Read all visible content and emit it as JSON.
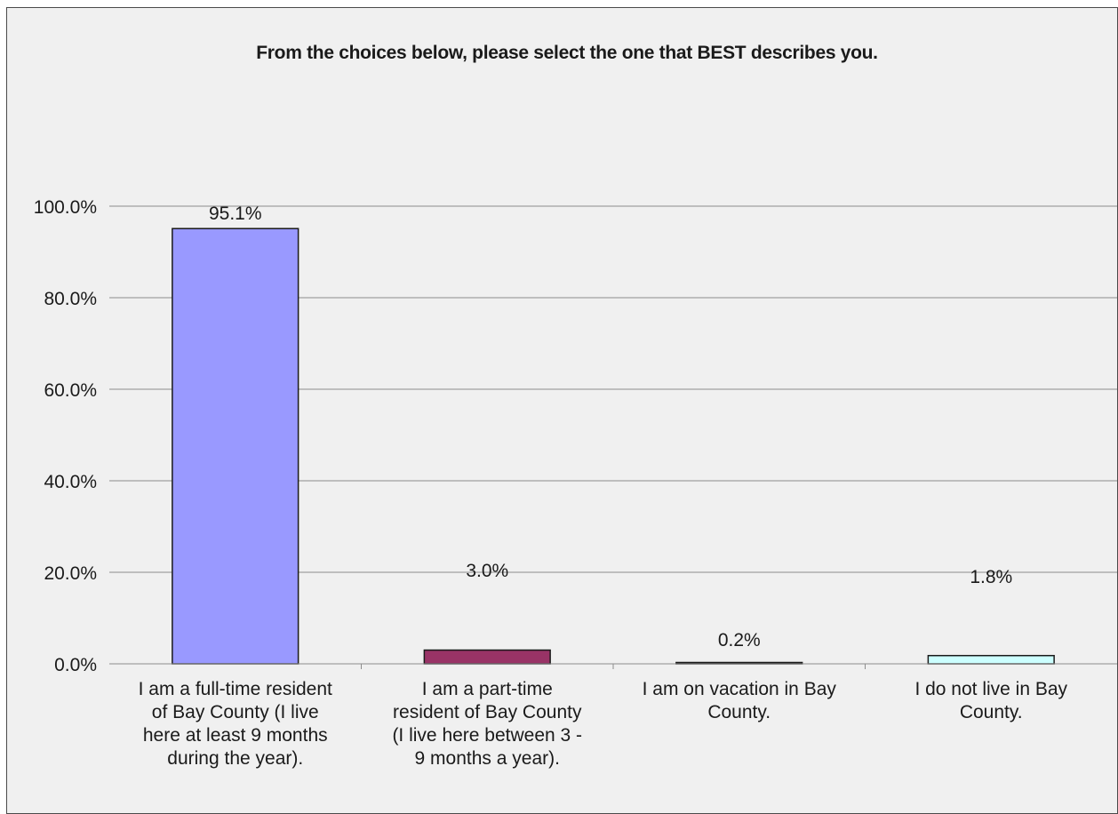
{
  "chart_data": {
    "type": "bar",
    "title": "From the choices below, please select the one that BEST describes you.",
    "xlabel": "",
    "ylabel": "",
    "ylim": [
      0,
      100
    ],
    "yticks": [
      0,
      20,
      40,
      60,
      80,
      100
    ],
    "ytick_labels": [
      "0.0%",
      "20.0%",
      "40.0%",
      "60.0%",
      "80.0%",
      "100.0%"
    ],
    "grid": true,
    "legend": "none",
    "categories": [
      [
        "I am a full-time resident",
        "of Bay County (I live",
        "here at least 9 months",
        "during the year)."
      ],
      [
        "I am a part-time",
        "resident of Bay County",
        "(I live here between 3 -",
        "9 months a year)."
      ],
      [
        "I am on vacation in Bay",
        "County."
      ],
      [
        "I do not live in Bay",
        "County."
      ]
    ],
    "values": [
      95.1,
      3.0,
      0.2,
      1.8
    ],
    "data_labels": [
      "95.1%",
      "3.0%",
      "0.2%",
      "1.8%"
    ],
    "colors": [
      "#9999ff",
      "#993366",
      "#ffffcc",
      "#ccffff"
    ]
  }
}
